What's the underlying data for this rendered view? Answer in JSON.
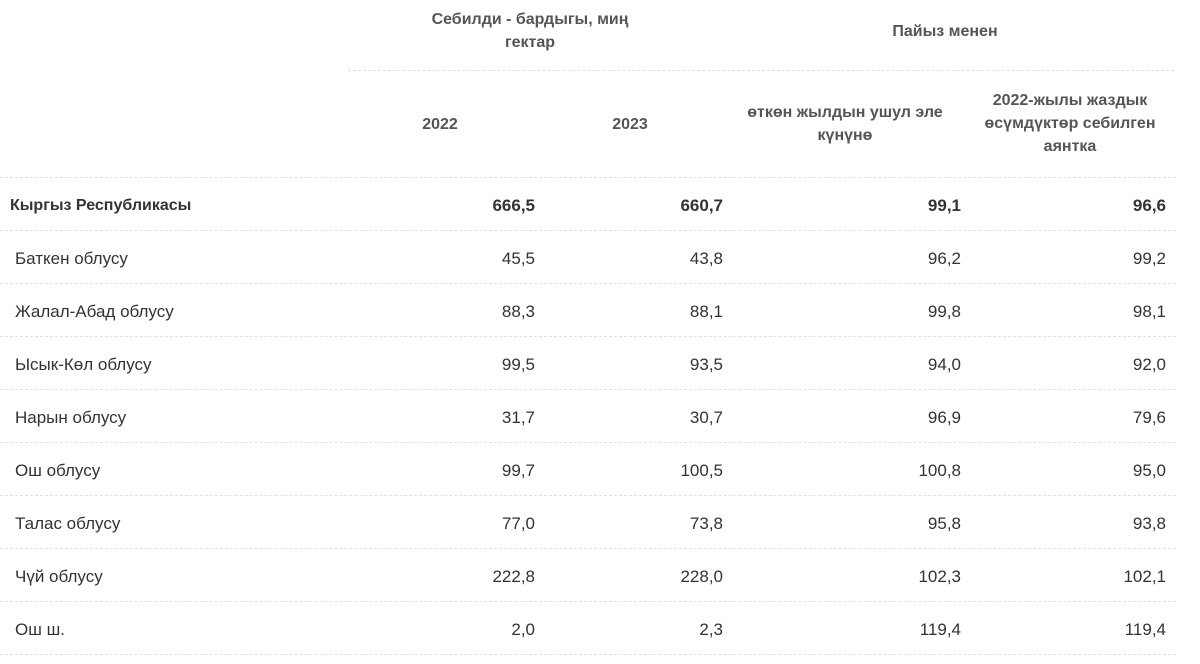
{
  "header": {
    "group_area": "Себилди - бардыгы, миң гектар",
    "group_percent": "Пайыз менен",
    "col_2022": "2022",
    "col_2023": "2023",
    "col_prev_year": "өткөн жылдын ушул эле күнүнө",
    "col_spring_area": "2022-жылы жаздык өсүмдүктөр себилген аянтка"
  },
  "rows": [
    {
      "region": "Кыргыз Республикасы",
      "v2022": "666,5",
      "v2023": "660,7",
      "prev": "99,1",
      "spring": "96,6",
      "total": true
    },
    {
      "region": "Баткен облусу",
      "v2022": "45,5",
      "v2023": "43,8",
      "prev": "96,2",
      "spring": "99,2"
    },
    {
      "region": "Жалал-Абад облусу",
      "v2022": "88,3",
      "v2023": "88,1",
      "prev": "99,8",
      "spring": "98,1"
    },
    {
      "region": "Ысык-Көл облусу",
      "v2022": "99,5",
      "v2023": "93,5",
      "prev": "94,0",
      "spring": "92,0"
    },
    {
      "region": "Нарын облусу",
      "v2022": "31,7",
      "v2023": "30,7",
      "prev": "96,9",
      "spring": "79,6"
    },
    {
      "region": "Ош облусу",
      "v2022": "99,7",
      "v2023": "100,5",
      "prev": "100,8",
      "spring": "95,0"
    },
    {
      "region": "Талас облусу",
      "v2022": "77,0",
      "v2023": "73,8",
      "prev": "95,8",
      "spring": "93,8"
    },
    {
      "region": "Чүй облусу",
      "v2022": "222,8",
      "v2023": "228,0",
      "prev": "102,3",
      "spring": "102,1"
    },
    {
      "region": "Ош ш.",
      "v2022": "2,0",
      "v2023": "2,3",
      "prev": "119,4",
      "spring": "119,4"
    }
  ]
}
